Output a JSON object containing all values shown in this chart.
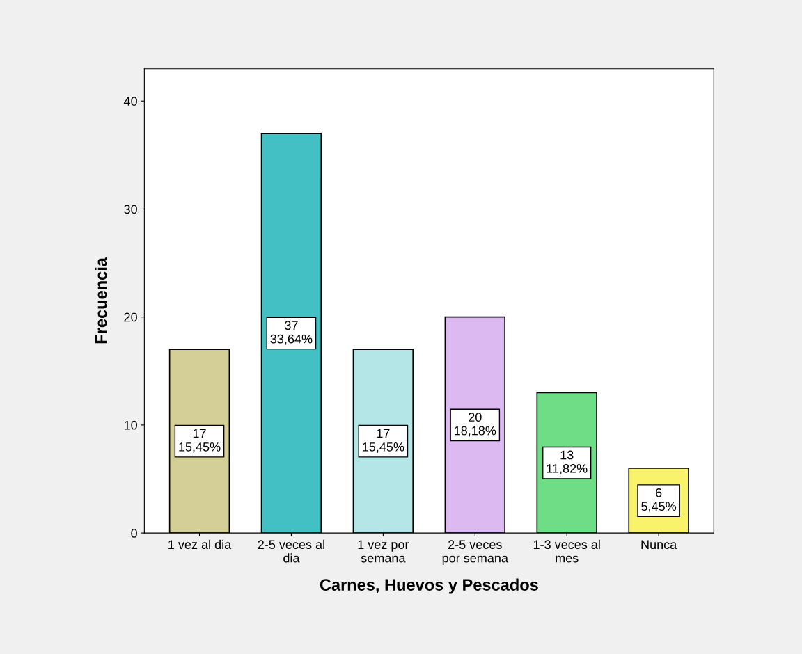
{
  "chart_data": {
    "type": "bar",
    "xlabel": "Carnes, Huevos y Pescados",
    "ylabel": "Frecuencia",
    "categories": [
      "1 vez al dia",
      "2-5 veces al\ndia",
      "1 vez por\nsemana",
      "2-5 veces\npor semana",
      "1-3 veces al\nmes",
      "Nunca"
    ],
    "values": [
      17,
      37,
      17,
      20,
      13,
      6
    ],
    "colors": [
      "#d4cf96",
      "#43c0c4",
      "#b4e6e8",
      "#ddb9f2",
      "#6fdc86",
      "#f9f36c"
    ],
    "value_labels": [
      "17\n15,45%",
      "37\n33,64%",
      "17\n15,45%",
      "20\n18,18%",
      "13\n11,82%",
      "6\n5,45%"
    ],
    "ylim": [
      0,
      43
    ],
    "yticks": [
      0,
      10,
      20,
      30,
      40
    ],
    "grid": false,
    "legend": false
  }
}
